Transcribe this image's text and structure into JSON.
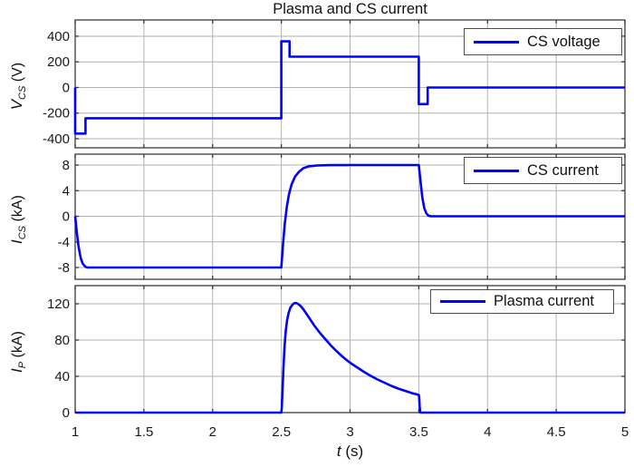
{
  "figure": {
    "title": "Plasma and CS current",
    "xlabel": {
      "var": "t",
      "unit": " (s)"
    },
    "background": "#ffffff",
    "line_color": "#0000ff",
    "grid_color": "#b2b2b2",
    "axis_color": "#3a3a3a",
    "text_color": "#1a1a1a",
    "legend_border_color": "#4d4d4d"
  },
  "x_axis": {
    "lim": [
      1,
      5
    ],
    "ticks": [
      1,
      1.5,
      2,
      2.5,
      3,
      3.5,
      4,
      4.5,
      5
    ],
    "label": "t (s)"
  },
  "chart_data": [
    {
      "type": "line",
      "panel": "cs-voltage",
      "legend": "CS voltage",
      "ylabel": {
        "var": "V",
        "sub": "CS",
        "unit": " (V)"
      },
      "ylabel_text": "V_CS (V)",
      "yticks": [
        400,
        200,
        0,
        -200,
        -400
      ],
      "ylim": [
        -471,
        527
      ],
      "grid": true,
      "legend_position": "northeast",
      "series": [
        {
          "name": "cs-voltage",
          "points": [
            [
              1,
              0
            ],
            [
              1,
              -360
            ],
            [
              1.075,
              -360
            ],
            [
              1.075,
              -240
            ],
            [
              2.5,
              -240
            ],
            [
              2.5,
              360
            ],
            [
              2.56,
              360
            ],
            [
              2.56,
              240
            ],
            [
              3.5,
              240
            ],
            [
              3.5,
              -130
            ],
            [
              3.565,
              -130
            ],
            [
              3.565,
              0
            ],
            [
              5,
              0
            ]
          ]
        }
      ]
    },
    {
      "type": "line",
      "panel": "cs-current",
      "legend": "CS current",
      "ylabel": {
        "var": "I",
        "sub": "CS",
        "unit": " (kA)"
      },
      "ylabel_text": "I_CS (kA)",
      "yticks": [
        8,
        4,
        0,
        -4,
        -8
      ],
      "ylim": [
        -9.84,
        9.7
      ],
      "grid": true,
      "legend_position": "northeast",
      "series": [
        {
          "name": "cs-current",
          "points": [
            [
              1,
              0
            ],
            [
              1.012,
              -2.5
            ],
            [
              1.025,
              -4.8
            ],
            [
              1.04,
              -6.5
            ],
            [
              1.055,
              -7.4
            ],
            [
              1.075,
              -7.9
            ],
            [
              1.09,
              -8
            ],
            [
              2.5,
              -8
            ],
            [
              2.512,
              -4.5
            ],
            [
              2.525,
              -1.2
            ],
            [
              2.54,
              1.5
            ],
            [
              2.555,
              3.4
            ],
            [
              2.575,
              5
            ],
            [
              2.6,
              6.2
            ],
            [
              2.63,
              7
            ],
            [
              2.66,
              7.5
            ],
            [
              2.7,
              7.8
            ],
            [
              2.76,
              7.93
            ],
            [
              2.85,
              7.99
            ],
            [
              3,
              8
            ],
            [
              3.5,
              8
            ],
            [
              3.512,
              5.6
            ],
            [
              3.525,
              3
            ],
            [
              3.54,
              1.3
            ],
            [
              3.555,
              0.45
            ],
            [
              3.57,
              0.1
            ],
            [
              3.59,
              0
            ],
            [
              5,
              0
            ]
          ]
        }
      ]
    },
    {
      "type": "line",
      "panel": "plasma-current",
      "legend": "Plasma current",
      "ylabel": {
        "var": "I",
        "sub": "P",
        "unit": " (kA)"
      },
      "ylabel_text": "I_P (kA)",
      "yticks": [
        120,
        80,
        40,
        0
      ],
      "ylim": [
        0,
        140
      ],
      "grid": true,
      "legend_position": "northeast",
      "series": [
        {
          "name": "plasma-current",
          "points": [
            [
              1,
              0
            ],
            [
              2.5,
              0
            ],
            [
              2.503,
              5
            ],
            [
              2.508,
              22
            ],
            [
              2.515,
              48
            ],
            [
              2.523,
              72
            ],
            [
              2.532,
              90
            ],
            [
              2.542,
              102
            ],
            [
              2.553,
              110
            ],
            [
              2.565,
              115.5
            ],
            [
              2.578,
              118.5
            ],
            [
              2.59,
              120.3
            ],
            [
              2.605,
              121
            ],
            [
              2.62,
              120
            ],
            [
              2.64,
              117.5
            ],
            [
              2.66,
              114
            ],
            [
              2.7,
              105
            ],
            [
              2.74,
              96
            ],
            [
              2.78,
              88
            ],
            [
              2.82,
              81
            ],
            [
              2.86,
              74
            ],
            [
              2.9,
              68
            ],
            [
              2.95,
              61
            ],
            [
              3,
              55
            ],
            [
              3.05,
              50
            ],
            [
              3.1,
              45
            ],
            [
              3.15,
              40.5
            ],
            [
              3.2,
              36.5
            ],
            [
              3.25,
              33
            ],
            [
              3.3,
              29.5
            ],
            [
              3.35,
              26.5
            ],
            [
              3.4,
              24
            ],
            [
              3.45,
              21.5
            ],
            [
              3.5,
              19.5
            ],
            [
              3.503,
              17
            ],
            [
              3.507,
              6
            ],
            [
              3.51,
              0
            ],
            [
              5,
              0
            ]
          ]
        }
      ]
    }
  ]
}
